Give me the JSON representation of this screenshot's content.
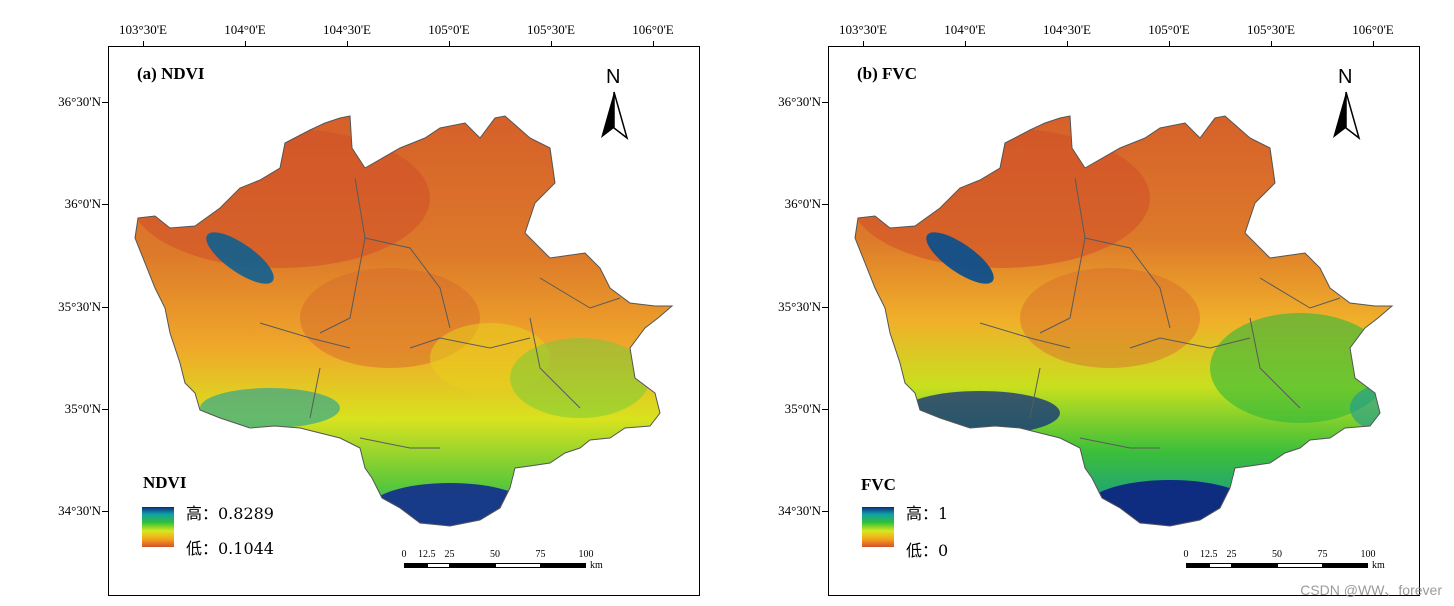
{
  "x_ticks": [
    "103°30'E",
    "104°0'E",
    "104°30'E",
    "105°0'E",
    "105°30'E",
    "106°0'E"
  ],
  "y_ticks": [
    "36°30'N",
    "36°0'N",
    "35°30'N",
    "35°0'N",
    "34°30'N"
  ],
  "north_arrow": "N",
  "scale_labels": [
    "0",
    "12.5",
    "25",
    "50",
    "75",
    "100"
  ],
  "scale_unit": "km",
  "panels": [
    {
      "title": "(a) NDVI",
      "legend_title": "NDVI",
      "legend_high": "高：0.8289",
      "legend_low": "低：0.1044"
    },
    {
      "title": "(b) FVC",
      "legend_title": "FVC",
      "legend_high": "高：1",
      "legend_low": "低：0"
    }
  ],
  "colors": {
    "high": "#0a2a7a",
    "mid_high": "#2fbf3a",
    "mid": "#d8e81e",
    "mid_low": "#f5a41c",
    "low": "#d2502c",
    "boundary": "#555555"
  },
  "watermark": "CSDN @WW、forever"
}
